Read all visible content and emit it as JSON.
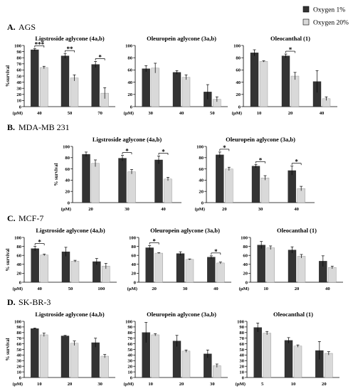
{
  "legend": [
    {
      "label": "Oxygen  1%",
      "color": "#333333"
    },
    {
      "label": "Oxygen  20%",
      "color": "#d9d9d9"
    }
  ],
  "sections": [
    {
      "letter": "A.",
      "name": "AGS"
    },
    {
      "letter": "B.",
      "name": "MDA-MB 231"
    },
    {
      "letter": "C.",
      "name": "MCF-7"
    },
    {
      "letter": "D.",
      "name": "SK-BR-3"
    }
  ],
  "chart_data": [
    {
      "type": "bar",
      "title": "Ligstroside aglycone (4a,b)",
      "ylabel": "%survival",
      "xunit": "(μM)",
      "ylim": [
        0,
        100
      ],
      "yticks": [
        0,
        10,
        20,
        30,
        40,
        50,
        60,
        70,
        80,
        90,
        100
      ],
      "categories": [
        "40",
        "50",
        "70"
      ],
      "series": [
        {
          "name": "Oxygen  1%",
          "values": [
            93,
            83,
            69
          ],
          "errors": [
            2,
            4,
            5
          ]
        },
        {
          "name": "Oxygen  20%",
          "values": [
            64,
            47,
            22
          ],
          "errors": [
            2,
            5,
            9
          ]
        }
      ],
      "significance": [
        "***",
        "**",
        "*"
      ]
    },
    {
      "type": "bar",
      "title": "Oleuropein aglycone (3a,b)",
      "ylabel": "",
      "xunit": "(μM)",
      "ylim": [
        0,
        100
      ],
      "yticks": [
        0,
        20,
        40,
        60,
        80,
        100
      ],
      "categories": [
        "30",
        "40",
        "50"
      ],
      "series": [
        {
          "name": "Oxygen  1%",
          "values": [
            62,
            56,
            24
          ],
          "errors": [
            5,
            3,
            12
          ]
        },
        {
          "name": "Oxygen  20%",
          "values": [
            63,
            48,
            12
          ],
          "errors": [
            8,
            4,
            4
          ]
        }
      ],
      "significance": [
        "",
        "",
        ""
      ]
    },
    {
      "type": "bar",
      "title": "Oleocanthal (1)",
      "ylabel": "",
      "xunit": "(μM)",
      "ylim": [
        0,
        100
      ],
      "yticks": [
        0,
        20,
        40,
        60,
        80,
        100
      ],
      "categories": [
        "10",
        "20",
        "40"
      ],
      "series": [
        {
          "name": "Oxygen  1%",
          "values": [
            88,
            83,
            41
          ],
          "errors": [
            5,
            3,
            18
          ]
        },
        {
          "name": "Oxygen  20%",
          "values": [
            74,
            50,
            13
          ],
          "errors": [
            1,
            6,
            3
          ]
        }
      ],
      "significance": [
        "",
        "*",
        ""
      ]
    },
    {
      "type": "bar",
      "title": "Ligstroside aglycone (4a,b)",
      "ylabel": "% survival",
      "xunit": "(μM)",
      "ylim": [
        0,
        100
      ],
      "yticks": [
        0,
        20,
        40,
        60,
        80,
        100
      ],
      "categories": [
        "20",
        "30",
        "40"
      ],
      "series": [
        {
          "name": "Oxygen  1%",
          "values": [
            86,
            79,
            76
          ],
          "errors": [
            4,
            5,
            7
          ]
        },
        {
          "name": "Oxygen  20%",
          "values": [
            70,
            55,
            42
          ],
          "errors": [
            6,
            4,
            3
          ]
        }
      ],
      "significance": [
        "",
        "*",
        "*"
      ]
    },
    {
      "type": "bar",
      "title": "Oleuropein aglycone (3a,b)",
      "ylabel": "",
      "xunit": "(μM)",
      "ylim": [
        0,
        100
      ],
      "yticks": [
        0,
        20,
        40,
        60,
        80,
        100
      ],
      "categories": [
        "20",
        "30",
        "40"
      ],
      "series": [
        {
          "name": "Oxygen  1%",
          "values": [
            85,
            65,
            57
          ],
          "errors": [
            5,
            3,
            8
          ]
        },
        {
          "name": "Oxygen  20%",
          "values": [
            60,
            44,
            25
          ],
          "errors": [
            3,
            4,
            4
          ]
        }
      ],
      "significance": [
        "*",
        "*",
        "*"
      ]
    },
    {
      "type": "bar",
      "title": "Ligstroside aglycone (4a,b)",
      "ylabel": "% survival",
      "xunit": "(μM)",
      "ylim": [
        0,
        100
      ],
      "yticks": [
        0,
        20,
        40,
        60,
        80,
        100
      ],
      "categories": [
        "40",
        "50",
        "100"
      ],
      "series": [
        {
          "name": "Oxygen  1%",
          "values": [
            75,
            68,
            46
          ],
          "errors": [
            5,
            10,
            7
          ]
        },
        {
          "name": "Oxygen  20%",
          "values": [
            61,
            47,
            36
          ],
          "errors": [
            2,
            2,
            6
          ]
        }
      ],
      "significance": [
        "*",
        "",
        ""
      ]
    },
    {
      "type": "bar",
      "title": "Oleuropein aglycone (3a,b)",
      "ylabel": "",
      "xunit": "(μM)",
      "ylim": [
        0,
        100
      ],
      "yticks": [
        0,
        20,
        40,
        60,
        80,
        100
      ],
      "categories": [
        "20",
        "30",
        "40"
      ],
      "series": [
        {
          "name": "Oxygen  1%",
          "values": [
            77,
            64,
            56
          ],
          "errors": [
            5,
            4,
            3
          ]
        },
        {
          "name": "Oxygen  20%",
          "values": [
            65,
            51,
            43
          ],
          "errors": [
            1,
            1,
            2
          ]
        }
      ],
      "significance": [
        "*",
        "",
        "*"
      ]
    },
    {
      "type": "bar",
      "title": "Oleocanthal (1)",
      "ylabel": "",
      "xunit": "(μM)",
      "ylim": [
        0,
        100
      ],
      "yticks": [
        0,
        20,
        40,
        60,
        80,
        100
      ],
      "categories": [
        "10",
        "20",
        "40"
      ],
      "series": [
        {
          "name": "Oxygen  1%",
          "values": [
            83,
            72,
            47
          ],
          "errors": [
            8,
            7,
            12
          ]
        },
        {
          "name": "Oxygen  20%",
          "values": [
            77,
            58,
            33
          ],
          "errors": [
            4,
            4,
            3
          ]
        }
      ],
      "significance": [
        "",
        "",
        ""
      ]
    },
    {
      "type": "bar",
      "title": "Ligstroside aglycone (4a,b)",
      "ylabel": "% survival",
      "xunit": "(μM)",
      "ylim": [
        0,
        100
      ],
      "yticks": [
        0,
        10,
        20,
        30,
        40,
        50,
        60,
        70,
        80,
        90,
        100
      ],
      "categories": [
        "10",
        "20",
        "30"
      ],
      "series": [
        {
          "name": "Oxygen  1%",
          "values": [
            87,
            74,
            62
          ],
          "errors": [
            1,
            1,
            8
          ]
        },
        {
          "name": "Oxygen  20%",
          "values": [
            76,
            61,
            38
          ],
          "errors": [
            3,
            4,
            3
          ]
        }
      ],
      "significance": [
        "",
        "",
        ""
      ]
    },
    {
      "type": "bar",
      "title": "Oleuropein aglycone (3a,b)",
      "ylabel": "",
      "xunit": "(μM)",
      "ylim": [
        0,
        100
      ],
      "yticks": [
        0,
        10,
        20,
        30,
        40,
        50,
        60,
        70,
        80,
        90,
        100
      ],
      "categories": [
        "10",
        "20",
        "30"
      ],
      "series": [
        {
          "name": "Oxygen  1%",
          "values": [
            80,
            65,
            42
          ],
          "errors": [
            18,
            10,
            7
          ]
        },
        {
          "name": "Oxygen  20%",
          "values": [
            76,
            47,
            21
          ],
          "errors": [
            2,
            2,
            3
          ]
        }
      ],
      "significance": [
        "",
        "",
        ""
      ]
    },
    {
      "type": "bar",
      "title": "Oleocanthal (1)",
      "ylabel": "",
      "xunit": "(μM)",
      "ylim": [
        0,
        100
      ],
      "yticks": [
        0,
        10,
        20,
        30,
        40,
        50,
        60,
        70,
        80,
        90,
        100
      ],
      "categories": [
        "5",
        "10",
        "20"
      ],
      "series": [
        {
          "name": "Oxygen  1%",
          "values": [
            89,
            66,
            48
          ],
          "errors": [
            8,
            5,
            16
          ]
        },
        {
          "name": "Oxygen  20%",
          "values": [
            79,
            56,
            43
          ],
          "errors": [
            3,
            2,
            3
          ]
        }
      ],
      "significance": [
        "",
        "",
        ""
      ]
    }
  ]
}
